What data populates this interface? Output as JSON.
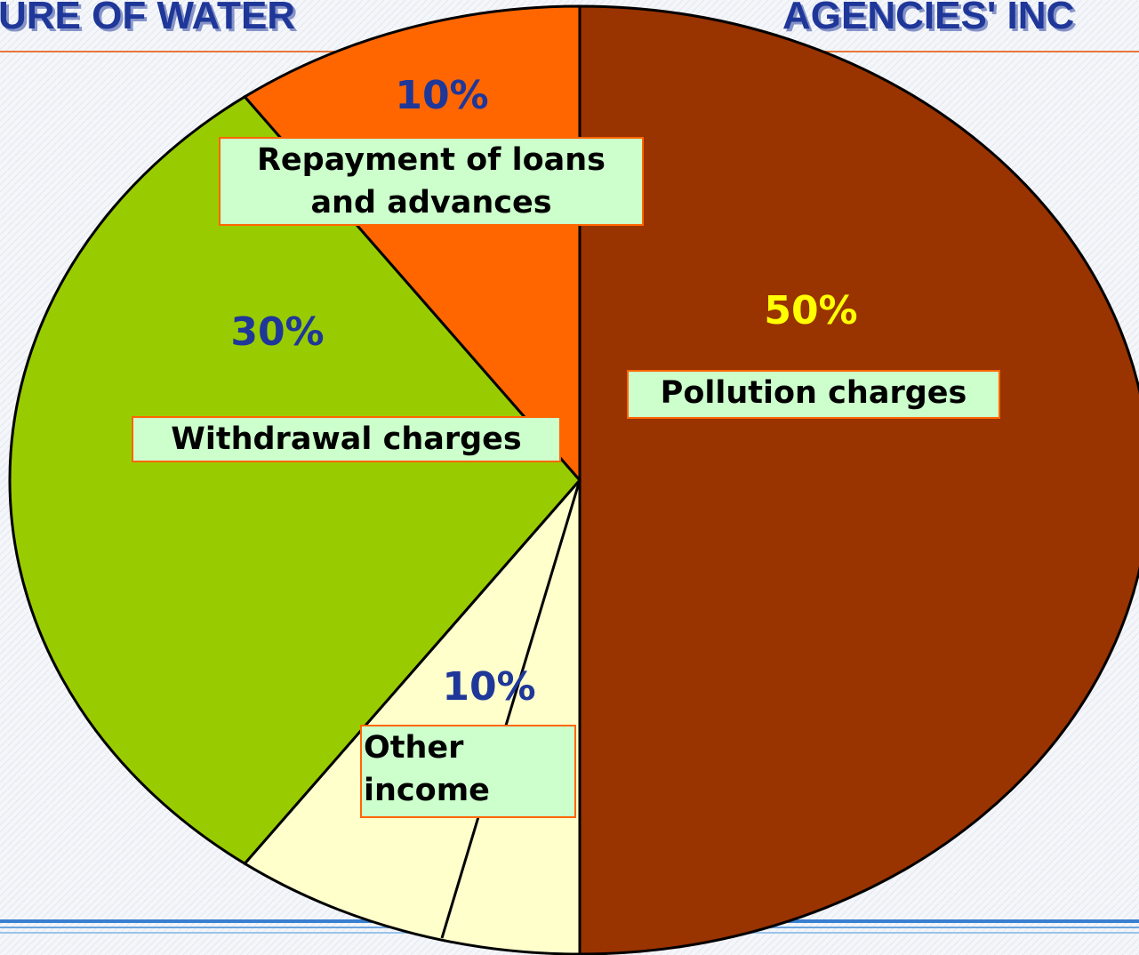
{
  "chart_data": {
    "type": "pie",
    "titles": [
      "URE OF WATER",
      "AGENCIES' INC"
    ],
    "categories": [
      "Pollution charges",
      "Other income",
      "Withdrawal charges",
      "Repayment of loans and advances"
    ],
    "values": [
      50,
      10,
      30,
      10
    ],
    "value_labels": [
      "50%",
      "10%",
      "30%",
      "10%"
    ],
    "colors": [
      "#993300",
      "#ffffcc",
      "#99cc00",
      "#ff6600"
    ],
    "label_colors": [
      "#ffff00",
      "#1f3799",
      "#1f3799",
      "#1f3799"
    ]
  }
}
